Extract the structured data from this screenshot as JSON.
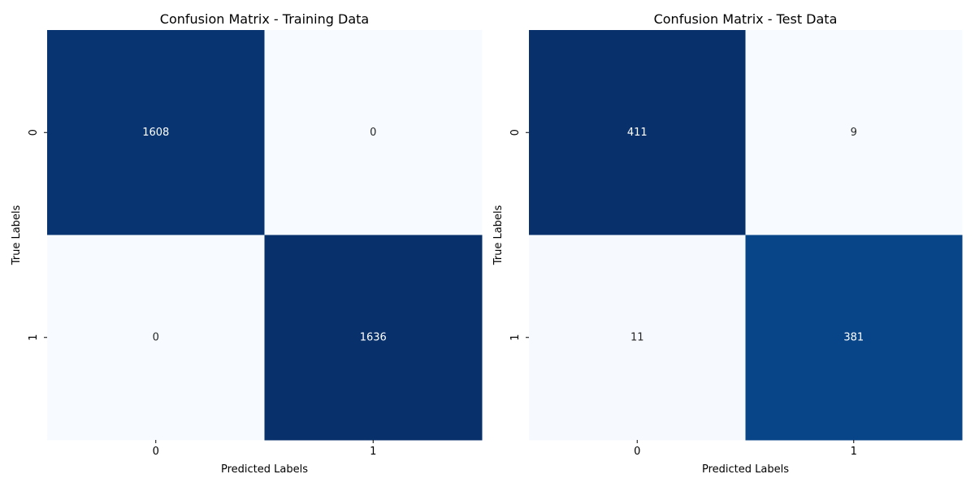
{
  "chart_data": [
    {
      "type": "heatmap",
      "title": "Confusion Matrix - Training Data",
      "xlabel": "Predicted Labels",
      "ylabel": "True Labels",
      "x_ticks": [
        "0",
        "1"
      ],
      "y_ticks": [
        "0",
        "1"
      ],
      "values": [
        [
          1608,
          0
        ],
        [
          0,
          1636
        ]
      ],
      "colormap": "Blues",
      "colorbar": false,
      "annotations": true,
      "annotation_colors": {
        "dark_cell": "#ffffff",
        "light_cell": "#262626"
      }
    },
    {
      "type": "heatmap",
      "title": "Confusion Matrix - Test Data",
      "xlabel": "Predicted Labels",
      "ylabel": "True Labels",
      "x_ticks": [
        "0",
        "1"
      ],
      "y_ticks": [
        "0",
        "1"
      ],
      "values": [
        [
          411,
          9
        ],
        [
          11,
          381
        ]
      ],
      "colormap": "Blues",
      "colorbar": false,
      "annotations": true,
      "annotation_colors": {
        "dark_cell": "#ffffff",
        "light_cell": "#262626"
      }
    }
  ]
}
